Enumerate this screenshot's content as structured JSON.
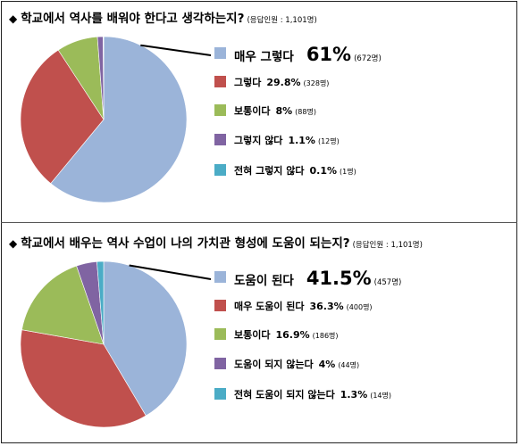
{
  "chart_data": [
    {
      "type": "pie",
      "title": "학교에서 역사를 배워야 한다고 생각하는지?",
      "respondents": "(응답인원 : 1,101명)",
      "slices": [
        {
          "label": "매우 그렇다",
          "value": 61,
          "pct_text": "61%",
          "count_text": "(672명)",
          "color": "#9BB4D9"
        },
        {
          "label": "그렇다",
          "value": 29.8,
          "pct_text": "29.8%",
          "count_text": "(328명)",
          "color": "#C0504D"
        },
        {
          "label": "보통이다",
          "value": 8,
          "pct_text": "8%",
          "count_text": "(88명)",
          "color": "#9BBB59"
        },
        {
          "label": "그렇지 않다",
          "value": 1.1,
          "pct_text": "1.1%",
          "count_text": "(12명)",
          "color": "#8064A2"
        },
        {
          "label": "전혀 그렇지 않다",
          "value": 0.1,
          "pct_text": "0.1%",
          "count_text": "(1명)",
          "color": "#4BACC6"
        }
      ]
    },
    {
      "type": "pie",
      "title": "학교에서 배우는 역사 수업이 나의 가치관 형성에 도움이 되는지?",
      "respondents": "(응답인원 : 1,101명)",
      "slices": [
        {
          "label": "도움이 된다",
          "value": 41.5,
          "pct_text": "41.5%",
          "count_text": "(457명)",
          "color": "#9BB4D9"
        },
        {
          "label": "매우 도움이 된다",
          "value": 36.3,
          "pct_text": "36.3%",
          "count_text": "(400명)",
          "color": "#C0504D"
        },
        {
          "label": "보통이다",
          "value": 16.9,
          "pct_text": "16.9%",
          "count_text": "(186명)",
          "color": "#9BBB59"
        },
        {
          "label": "도움이 되지 않는다",
          "value": 4,
          "pct_text": "4%",
          "count_text": "(44명)",
          "color": "#8064A2"
        },
        {
          "label": "전혀 도움이 되지 않는다",
          "value": 1.3,
          "pct_text": "1.3%",
          "count_text": "(14명)",
          "color": "#4BACC6"
        }
      ]
    }
  ]
}
